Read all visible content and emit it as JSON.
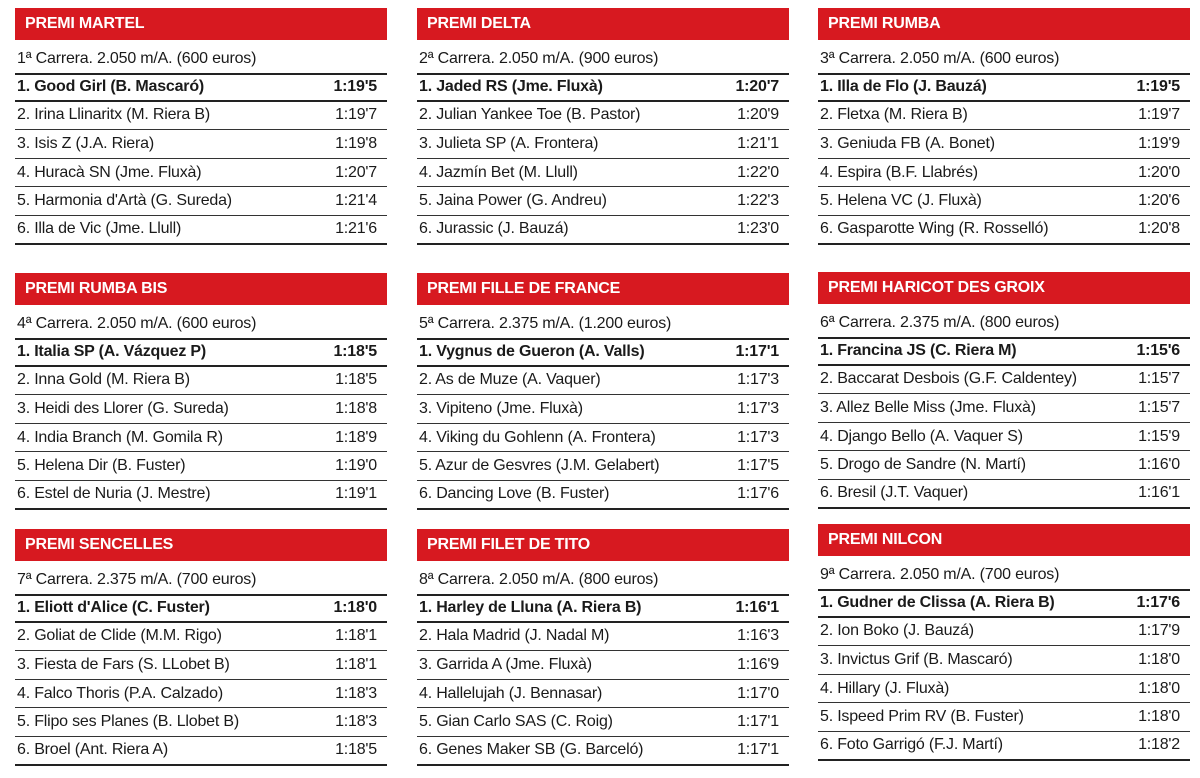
{
  "races": [
    {
      "title": "PREMI MARTEL",
      "info": "1ª Carrera. 2.050 m/A. (600 euros)",
      "rows": [
        [
          "1. Good Girl (B. Mascaró)",
          "1:19'5"
        ],
        [
          "2. Irina Llinaritx (M. Riera B)",
          "1:19'7"
        ],
        [
          "3. Isis Z (J.A. Riera)",
          "1:19'8"
        ],
        [
          "4. Huracà SN (Jme. Fluxà)",
          "1:20'7"
        ],
        [
          "5. Harmonia d'Artà (G. Sureda)",
          "1:21'4"
        ],
        [
          "6. Illa de Vic (Jme. Llull)",
          "1:21'6"
        ]
      ]
    },
    {
      "title": "PREMI DELTA",
      "info": "2ª Carrera. 2.050 m/A. (900 euros)",
      "rows": [
        [
          "1. Jaded RS (Jme. Fluxà)",
          "1:20'7"
        ],
        [
          "2. Julian Yankee Toe (B. Pastor)",
          "1:20'9"
        ],
        [
          "3. Julieta SP (A. Frontera)",
          "1:21'1"
        ],
        [
          "4. Jazmín Bet (M. Llull)",
          "1:22'0"
        ],
        [
          "5. Jaina Power (G. Andreu)",
          "1:22'3"
        ],
        [
          "6. Jurassic (J. Bauzá)",
          "1:23'0"
        ]
      ]
    },
    {
      "title": "PREMI RUMBA",
      "info": "3ª Carrera. 2.050 m/A. (600 euros)",
      "rows": [
        [
          "1. Illa de Flo (J. Bauzá)",
          "1:19'5"
        ],
        [
          "2. Fletxa (M. Riera B)",
          "1:19'7"
        ],
        [
          "3. Geniuda FB (A. Bonet)",
          "1:19'9"
        ],
        [
          "4. Espira (B.F. Llabrés)",
          "1:20'0"
        ],
        [
          "5. Helena VC (J. Fluxà)",
          "1:20'6"
        ],
        [
          "6. Gasparotte Wing (R. Rosselló)",
          "1:20'8"
        ]
      ]
    },
    {
      "title": "PREMI RUMBA BIS",
      "info": "4ª Carrera. 2.050 m/A. (600 euros)",
      "rows": [
        [
          "1. Italia SP (A. Vázquez P)",
          "1:18'5"
        ],
        [
          "2. Inna Gold (M. Riera B)",
          "1:18'5"
        ],
        [
          "3. Heidi des Llorer (G. Sureda)",
          "1:18'8"
        ],
        [
          "4. India Branch (M. Gomila R)",
          "1:18'9"
        ],
        [
          "5. Helena Dir (B. Fuster)",
          "1:19'0"
        ],
        [
          "6. Estel de Nuria (J. Mestre)",
          "1:19'1"
        ]
      ]
    },
    {
      "title": "PREMI FILLE DE FRANCE",
      "info": "5ª Carrera. 2.375 m/A. (1.200 euros)",
      "rows": [
        [
          "1. Vygnus de Gueron (A. Valls)",
          "1:17'1"
        ],
        [
          "2. As de Muze (A. Vaquer)",
          "1:17'3"
        ],
        [
          "3. Vipiteno (Jme. Fluxà)",
          "1:17'3"
        ],
        [
          "4. Viking du Gohlenn (A. Frontera)",
          "1:17'3"
        ],
        [
          "5. Azur de Gesvres (J.M. Gelabert)",
          "1:17'5"
        ],
        [
          "6. Dancing Love (B. Fuster)",
          "1:17'6"
        ]
      ]
    },
    {
      "title": "PREMI HARICOT DES GROIX",
      "info": "6ª Carrera. 2.375 m/A. (800 euros)",
      "rows": [
        [
          "1. Francina JS (C. Riera M)",
          "1:15'6"
        ],
        [
          "2. Baccarat Desbois (G.F. Caldentey)",
          "1:15'7"
        ],
        [
          "3. Allez Belle Miss (Jme. Fluxà)",
          "1:15'7"
        ],
        [
          "4. Django Bello (A. Vaquer S)",
          "1:15'9"
        ],
        [
          "5. Drogo de Sandre (N. Martí)",
          "1:16'0"
        ],
        [
          "6. Bresil (J.T. Vaquer)",
          "1:16'1"
        ]
      ]
    },
    {
      "title": "PREMI SENCELLES",
      "info": "7ª Carrera. 2.375 m/A. (700 euros)",
      "rows": [
        [
          "1. Eliott d'Alice (C. Fuster)",
          "1:18'0"
        ],
        [
          "2. Goliat de Clide (M.M. Rigo)",
          "1:18'1"
        ],
        [
          "3. Fiesta de Fars (S. LLobet B)",
          "1:18'1"
        ],
        [
          "4. Falco Thoris (P.A. Calzado)",
          "1:18'3"
        ],
        [
          "5. Flipo ses Planes (B. Llobet B)",
          "1:18'3"
        ],
        [
          "6. Broel (Ant. Riera A)",
          "1:18'5"
        ]
      ]
    },
    {
      "title": "PREMI FILET DE TITO",
      "info": "8ª Carrera. 2.050 m/A. (800 euros)",
      "rows": [
        [
          "1. Harley de Lluna (A. Riera B)",
          "1:16'1"
        ],
        [
          "2. Hala Madrid (J. Nadal M)",
          "1:16'3"
        ],
        [
          "3. Garrida A (Jme. Fluxà)",
          "1:16'9"
        ],
        [
          "4. Hallelujah (J. Bennasar)",
          "1:17'0"
        ],
        [
          "5. Gian Carlo SAS (C. Roig)",
          "1:17'1"
        ],
        [
          "6. Genes Maker SB (G. Barceló)",
          "1:17'1"
        ]
      ]
    },
    {
      "title": "PREMI NILCON",
      "info": "9ª Carrera. 2.050 m/A. (700 euros)",
      "rows": [
        [
          "1. Gudner de Clissa (A. Riera B)",
          "1:17'6"
        ],
        [
          "2. Ion Boko (J. Bauzá)",
          "1:17'9"
        ],
        [
          "3. Invictus Grif (B. Mascaró)",
          "1:18'0"
        ],
        [
          "4. Hillary (J. Fluxà)",
          "1:18'0"
        ],
        [
          "5. Ispeed Prim RV (B. Fuster)",
          "1:18'0"
        ],
        [
          "6. Foto Garrigó (F.J. Martí)",
          "1:18'2"
        ]
      ]
    }
  ]
}
